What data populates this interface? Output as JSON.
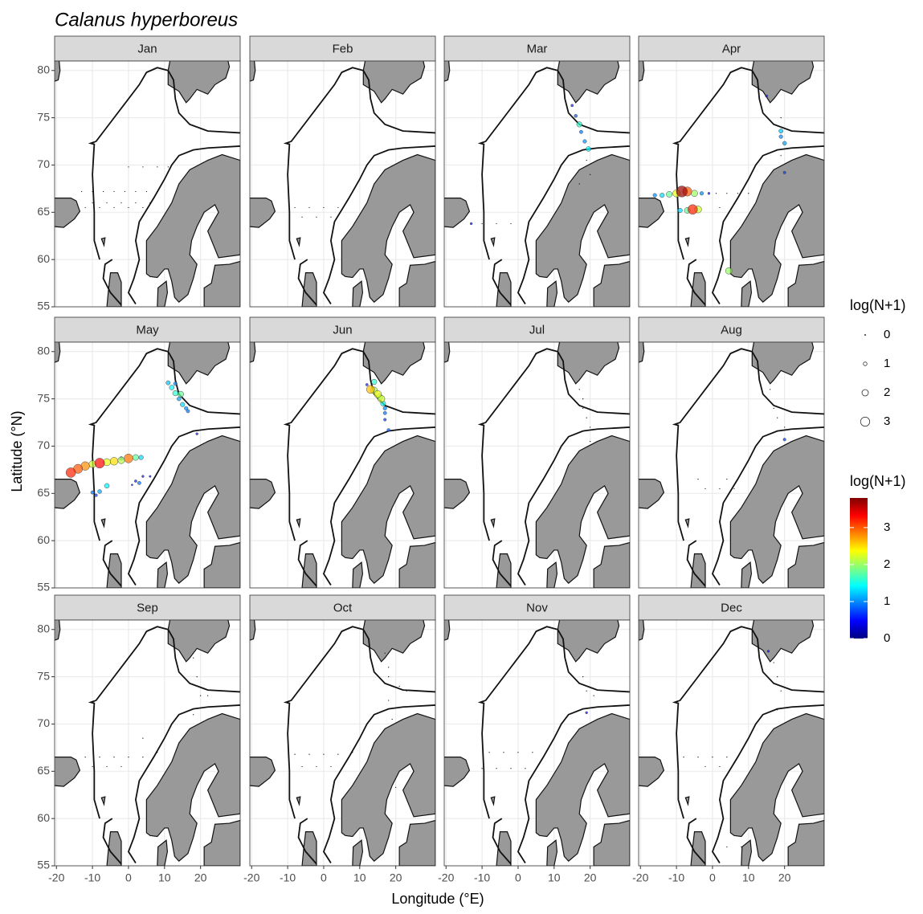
{
  "chart_data": {
    "type": "scatter",
    "title": "Calanus hyperboreus",
    "x_label": "Longitude (°E)",
    "y_label": "Latitude (°N)",
    "xlim": [
      -20.5,
      31
    ],
    "ylim": [
      55,
      81
    ],
    "xticks": [
      -20,
      -10,
      0,
      10,
      20
    ],
    "yticks": [
      55,
      60,
      65,
      70,
      75,
      80
    ],
    "grid": true,
    "facets": [
      {
        "name": "Jan",
        "lon": [
          -13,
          -10,
          -7,
          -4,
          -1,
          2,
          5,
          8,
          -10,
          -6,
          -2,
          2,
          6,
          -12,
          -8,
          -4,
          0,
          4,
          0,
          4,
          8,
          11
        ],
        "lat": [
          67.2,
          67.2,
          67.2,
          67.2,
          67.2,
          67.2,
          67.2,
          67.2,
          66,
          66,
          66,
          66,
          66,
          65.5,
          65.5,
          65.5,
          65.5,
          65.5,
          69.8,
          69.8,
          69.8,
          69.8
        ],
        "values": [
          0,
          0,
          0,
          0,
          0,
          0,
          0,
          0,
          0,
          0,
          0,
          0,
          0,
          0,
          0,
          0,
          0,
          0,
          0,
          0,
          0,
          0
        ]
      },
      {
        "name": "Feb",
        "lon": [
          -8,
          -4,
          0,
          4,
          -6,
          -2,
          2
        ],
        "lat": [
          65.5,
          65.5,
          65.5,
          65.5,
          64.5,
          64.5,
          64.5
        ],
        "values": [
          0,
          0,
          0,
          0,
          0,
          0,
          0
        ]
      },
      {
        "name": "Mar",
        "lon": [
          15,
          16,
          17,
          17.5,
          18.5,
          19.5,
          -13,
          19,
          20,
          17,
          -10,
          -6,
          -2
        ],
        "lat": [
          76.3,
          75.2,
          74.3,
          73.5,
          72.5,
          71.7,
          63.8,
          70.5,
          69,
          68,
          63.8,
          63.8,
          63.8
        ],
        "values": [
          0.6,
          0.8,
          1.6,
          0.9,
          1.0,
          1.4,
          0.5,
          0,
          0,
          0,
          0,
          0,
          0
        ]
      },
      {
        "name": "Apr",
        "lon": [
          -16,
          -14,
          -12,
          -10,
          -8.5,
          -7,
          -5,
          -3,
          -1,
          -9,
          -7,
          -5.5,
          -4,
          4.5,
          15,
          19,
          19,
          20,
          20,
          1,
          4,
          7,
          10,
          2,
          19,
          19
        ],
        "lat": [
          66.8,
          66.8,
          66.9,
          67,
          67.2,
          67.2,
          67,
          67,
          67,
          65.2,
          65.2,
          65.3,
          65.3,
          58.8,
          77.3,
          73.6,
          73,
          72.3,
          69.2,
          67,
          67,
          67,
          67,
          65.5,
          75,
          71
        ],
        "values": [
          1.0,
          1.3,
          1.8,
          2.3,
          3.7,
          3.0,
          2.0,
          1.0,
          0.5,
          1.3,
          1.8,
          3.2,
          2.2,
          2.0,
          0.6,
          1.2,
          1.0,
          1.1,
          0.7,
          0,
          0,
          0,
          0,
          0,
          0,
          0
        ]
      },
      {
        "name": "May",
        "lon": [
          -16,
          -14,
          -12,
          -10,
          -8,
          -6,
          -4,
          -2,
          0,
          2,
          3.5,
          -2,
          -6,
          -8,
          -10,
          -9,
          2,
          3,
          4,
          6,
          1,
          11,
          12,
          13,
          14,
          15,
          16,
          16.5,
          14.5,
          13,
          19
        ],
        "lat": [
          67.2,
          67.6,
          67.9,
          68.1,
          68.2,
          68.3,
          68.4,
          68.5,
          68.7,
          68.8,
          68.8,
          68.7,
          65.8,
          65.2,
          65.1,
          64.8,
          66.3,
          66.1,
          66.8,
          66.8,
          65.9,
          76.7,
          76.2,
          75.6,
          75,
          74.4,
          74,
          73.7,
          75.5,
          76.6,
          71.3
        ],
        "values": [
          3.2,
          3.0,
          2.8,
          2.2,
          3.3,
          2.3,
          2.5,
          2.1,
          2.9,
          1.8,
          1.3,
          1.0,
          1.4,
          1.1,
          0.9,
          0.7,
          0.6,
          0.9,
          0.5,
          0.4,
          0.3,
          1.2,
          1.4,
          1.6,
          1.1,
          1.3,
          1.0,
          0.9,
          1.8,
          1.0,
          0.5
        ]
      },
      {
        "name": "Jun",
        "lon": [
          12,
          14,
          14,
          15,
          16,
          16.5,
          17,
          17,
          17,
          18,
          13,
          15.5
        ],
        "lat": [
          76.5,
          76.8,
          75.9,
          75.5,
          75,
          74.5,
          74,
          73.5,
          72.8,
          71.7,
          76,
          75.2
        ],
        "values": [
          0.6,
          1.6,
          2.1,
          2.3,
          2.2,
          1.5,
          1.0,
          0.9,
          0.7,
          0.8,
          2.6,
          1.9
        ]
      },
      {
        "name": "Jul",
        "lon": [
          17,
          18,
          18,
          19,
          20,
          20
        ],
        "lat": [
          76,
          75,
          74,
          73,
          72,
          70.5
        ],
        "values": [
          0,
          0,
          0,
          0,
          0,
          0
        ]
      },
      {
        "name": "Aug",
        "lon": [
          20,
          16,
          17,
          18,
          20,
          -2,
          2,
          6,
          -4,
          4
        ],
        "lat": [
          70.7,
          76,
          74,
          73,
          72,
          65.5,
          65.5,
          65.5,
          66.5,
          66.5
        ],
        "values": [
          0.7,
          0,
          0,
          0,
          0,
          0,
          0,
          0,
          0,
          0
        ]
      },
      {
        "name": "Sep",
        "lon": [
          18,
          19,
          20,
          22,
          18,
          -12,
          -8,
          -4,
          0,
          4,
          8,
          -10,
          -6,
          -2,
          4
        ],
        "lat": [
          77,
          75,
          73,
          73,
          71,
          66.5,
          66.5,
          66.5,
          66.5,
          66.5,
          67,
          65.5,
          65.5,
          65.5,
          68.5
        ],
        "values": [
          0,
          0,
          0,
          0,
          0,
          0,
          0,
          0,
          0,
          0,
          0,
          0,
          0,
          0,
          0
        ]
      },
      {
        "name": "Oct",
        "lon": [
          17,
          18,
          18,
          19,
          21,
          23,
          18,
          19,
          -8,
          -4,
          0,
          4,
          8,
          -6,
          -2,
          2,
          20
        ],
        "lat": [
          77.5,
          76,
          75,
          74,
          74,
          73.5,
          72.5,
          70.5,
          66.8,
          66.8,
          66.8,
          66.8,
          67,
          65.5,
          65.5,
          65.5,
          63.3
        ],
        "values": [
          0,
          0,
          0,
          0,
          0,
          0,
          0,
          0,
          0,
          0,
          0,
          0,
          0,
          0,
          0,
          0,
          0
        ]
      },
      {
        "name": "Nov",
        "lon": [
          19,
          17,
          18,
          19,
          21,
          -8,
          -4,
          0,
          4,
          -10,
          -6,
          -2,
          2
        ],
        "lat": [
          71.2,
          77,
          75,
          73.5,
          73,
          67,
          67,
          67,
          67,
          65.3,
          65.3,
          65.3,
          65.3
        ],
        "values": [
          0.5,
          0,
          0,
          0,
          0,
          0,
          0,
          0,
          0,
          0,
          0,
          0,
          0
        ]
      },
      {
        "name": "Dec",
        "lon": [
          15.5,
          17,
          18,
          19,
          18,
          -8,
          -4,
          0,
          4,
          -2,
          2,
          4,
          8
        ],
        "lat": [
          77.7,
          76.5,
          75,
          73.5,
          71.5,
          66.5,
          66.5,
          66.5,
          66.5,
          65.5,
          65.5,
          57,
          57
        ],
        "values": [
          0.5,
          0,
          0,
          0,
          0,
          0,
          0,
          0,
          0,
          0,
          0,
          0,
          0
        ]
      }
    ],
    "size_legend": {
      "title": "log(N+1)",
      "breaks": [
        0,
        1,
        2,
        3
      ]
    },
    "color_legend": {
      "title": "log(N+1)",
      "ticks": [
        0,
        1,
        2,
        3
      ],
      "limits": [
        0,
        3.8
      ],
      "colors": [
        "#00007F",
        "#0000FF",
        "#007FFF",
        "#00FFFF",
        "#7FFF7F",
        "#FFFF00",
        "#FF7F00",
        "#FF0000",
        "#7F0000"
      ]
    }
  }
}
